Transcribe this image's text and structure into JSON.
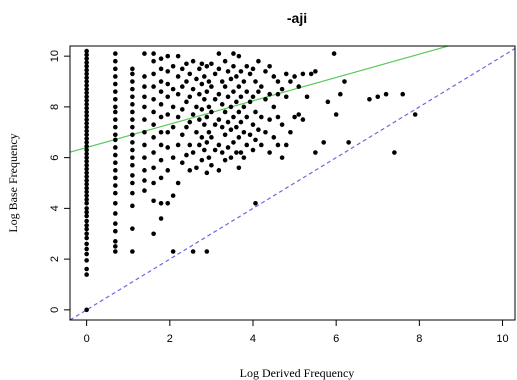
{
  "chart_data": {
    "type": "scatter",
    "title": "-aji",
    "xlabel": "Log Derived Frequency",
    "ylabel": "Log Base Frequency",
    "xlim": [
      -0.4,
      10.3
    ],
    "ylim": [
      -0.4,
      10.4
    ],
    "x_ticks": [
      0,
      2,
      4,
      6,
      8,
      10
    ],
    "y_ticks": [
      0,
      2,
      4,
      6,
      8,
      10
    ],
    "colors": {
      "points": "#000000",
      "fit_line": "#5cc95c",
      "identity_line": "#6a6ae0"
    },
    "lines": [
      {
        "name": "",
        "style": "solid",
        "color": "#5cc95c",
        "intercept": 6.4,
        "slope": 0.46
      },
      {
        "name": "",
        "style": "dashed",
        "color": "#6a6ae0",
        "intercept": 0,
        "slope": 1
      }
    ],
    "points": [
      [
        0,
        0
      ],
      [
        0,
        1.39
      ],
      [
        0,
        1.61
      ],
      [
        0,
        1.95
      ],
      [
        0,
        2.2
      ],
      [
        0,
        2.4
      ],
      [
        0,
        2.6
      ],
      [
        0,
        2.83
      ],
      [
        0,
        3.0
      ],
      [
        0,
        3.18
      ],
      [
        0,
        3.33
      ],
      [
        0,
        3.5
      ],
      [
        0,
        3.7
      ],
      [
        0,
        3.85
      ],
      [
        0,
        4.0
      ],
      [
        0,
        4.2
      ],
      [
        0,
        4.35
      ],
      [
        0,
        4.5
      ],
      [
        0,
        4.65
      ],
      [
        0,
        4.8
      ],
      [
        0,
        4.95
      ],
      [
        0,
        5.1
      ],
      [
        0,
        5.25
      ],
      [
        0,
        5.4
      ],
      [
        0,
        5.55
      ],
      [
        0,
        5.7
      ],
      [
        0,
        5.85
      ],
      [
        0,
        6.0
      ],
      [
        0,
        6.15
      ],
      [
        0,
        6.3
      ],
      [
        0,
        6.45
      ],
      [
        0,
        6.6
      ],
      [
        0,
        6.75
      ],
      [
        0,
        6.9
      ],
      [
        0,
        7.05
      ],
      [
        0,
        7.2
      ],
      [
        0,
        7.35
      ],
      [
        0,
        7.5
      ],
      [
        0,
        7.65
      ],
      [
        0,
        7.8
      ],
      [
        0,
        7.95
      ],
      [
        0,
        8.1
      ],
      [
        0,
        8.25
      ],
      [
        0,
        8.4
      ],
      [
        0,
        8.55
      ],
      [
        0,
        8.7
      ],
      [
        0,
        8.85
      ],
      [
        0,
        9.0
      ],
      [
        0,
        9.15
      ],
      [
        0,
        9.3
      ],
      [
        0,
        9.45
      ],
      [
        0,
        9.6
      ],
      [
        0,
        9.75
      ],
      [
        0,
        9.9
      ],
      [
        0,
        10.05
      ],
      [
        0,
        10.2
      ],
      [
        0.69,
        2.3
      ],
      [
        0.69,
        2.5
      ],
      [
        0.69,
        2.7
      ],
      [
        0.69,
        3.1
      ],
      [
        0.69,
        3.4
      ],
      [
        0.69,
        3.8
      ],
      [
        0.69,
        4.2
      ],
      [
        0.69,
        4.6
      ],
      [
        0.69,
        4.9
      ],
      [
        0.69,
        5.2
      ],
      [
        0.69,
        5.5
      ],
      [
        0.69,
        5.8
      ],
      [
        0.69,
        6.1
      ],
      [
        0.69,
        6.4
      ],
      [
        0.69,
        6.7
      ],
      [
        0.69,
        6.9
      ],
      [
        0.69,
        7.2
      ],
      [
        0.69,
        7.5
      ],
      [
        0.69,
        7.8
      ],
      [
        0.69,
        8.0
      ],
      [
        0.69,
        8.3
      ],
      [
        0.69,
        8.6
      ],
      [
        0.69,
        8.9
      ],
      [
        0.69,
        9.2
      ],
      [
        0.69,
        9.5
      ],
      [
        0.69,
        9.8
      ],
      [
        0.69,
        10.1
      ],
      [
        1.1,
        2.3
      ],
      [
        1.1,
        3.2
      ],
      [
        1.1,
        4.1
      ],
      [
        1.1,
        4.6
      ],
      [
        1.1,
        5.0
      ],
      [
        1.1,
        5.3
      ],
      [
        1.1,
        5.7
      ],
      [
        1.1,
        6.0
      ],
      [
        1.1,
        6.3
      ],
      [
        1.1,
        6.6
      ],
      [
        1.1,
        6.9
      ],
      [
        1.1,
        7.2
      ],
      [
        1.1,
        7.5
      ],
      [
        1.1,
        7.8
      ],
      [
        1.1,
        8.1
      ],
      [
        1.1,
        8.4
      ],
      [
        1.1,
        8.7
      ],
      [
        1.1,
        9.0
      ],
      [
        1.1,
        9.3
      ],
      [
        1.1,
        9.5
      ],
      [
        1.39,
        4.7
      ],
      [
        1.39,
        5.1
      ],
      [
        1.39,
        5.5
      ],
      [
        1.39,
        6.0
      ],
      [
        1.39,
        6.5
      ],
      [
        1.39,
        7.0
      ],
      [
        1.39,
        7.5
      ],
      [
        1.39,
        8.0
      ],
      [
        1.39,
        8.4
      ],
      [
        1.39,
        8.8
      ],
      [
        1.39,
        9.2
      ],
      [
        1.39,
        10.1
      ],
      [
        1.61,
        3.0
      ],
      [
        1.61,
        4.3
      ],
      [
        1.61,
        5.0
      ],
      [
        1.61,
        5.6
      ],
      [
        1.61,
        6.2
      ],
      [
        1.61,
        6.8
      ],
      [
        1.61,
        7.3
      ],
      [
        1.61,
        7.8
      ],
      [
        1.61,
        8.3
      ],
      [
        1.61,
        8.8
      ],
      [
        1.61,
        9.3
      ],
      [
        1.61,
        9.8
      ],
      [
        1.61,
        10.1
      ],
      [
        1.79,
        3.6
      ],
      [
        1.79,
        4.2
      ],
      [
        1.79,
        5.2
      ],
      [
        1.79,
        5.9
      ],
      [
        1.79,
        6.5
      ],
      [
        1.79,
        7.0
      ],
      [
        1.79,
        7.6
      ],
      [
        1.79,
        8.1
      ],
      [
        1.79,
        8.6
      ],
      [
        1.79,
        9.0
      ],
      [
        1.79,
        9.5
      ],
      [
        1.79,
        9.9
      ],
      [
        1.95,
        4.2
      ],
      [
        1.95,
        5.5
      ],
      [
        1.95,
        6.4
      ],
      [
        1.95,
        7.0
      ],
      [
        1.95,
        7.7
      ],
      [
        1.95,
        8.4
      ],
      [
        1.95,
        8.9
      ],
      [
        1.95,
        9.4
      ],
      [
        1.95,
        10.0
      ],
      [
        2.08,
        2.3
      ],
      [
        2.08,
        4.5
      ],
      [
        2.08,
        6.0
      ],
      [
        2.08,
        7.2
      ],
      [
        2.08,
        8.0
      ],
      [
        2.08,
        8.7
      ],
      [
        2.08,
        9.6
      ],
      [
        2.2,
        5.0
      ],
      [
        2.2,
        6.5
      ],
      [
        2.2,
        7.6
      ],
      [
        2.2,
        8.5
      ],
      [
        2.2,
        9.2
      ],
      [
        2.2,
        10.0
      ],
      [
        2.3,
        5.8
      ],
      [
        2.3,
        6.9
      ],
      [
        2.3,
        7.9
      ],
      [
        2.3,
        8.8
      ],
      [
        2.3,
        9.5
      ],
      [
        2.4,
        6.1
      ],
      [
        2.4,
        7.2
      ],
      [
        2.4,
        8.2
      ],
      [
        2.4,
        9.0
      ],
      [
        2.4,
        9.7
      ],
      [
        2.48,
        5.5
      ],
      [
        2.48,
        6.5
      ],
      [
        2.48,
        7.4
      ],
      [
        2.48,
        8.4
      ],
      [
        2.48,
        9.3
      ],
      [
        2.56,
        2.3
      ],
      [
        2.56,
        6.2
      ],
      [
        2.56,
        7.7
      ],
      [
        2.56,
        8.7
      ],
      [
        2.56,
        9.8
      ],
      [
        2.64,
        5.6
      ],
      [
        2.64,
        7.0
      ],
      [
        2.64,
        8.0
      ],
      [
        2.64,
        9.1
      ],
      [
        2.71,
        6.5
      ],
      [
        2.71,
        7.5
      ],
      [
        2.71,
        8.5
      ],
      [
        2.71,
        9.5
      ],
      [
        2.77,
        5.9
      ],
      [
        2.77,
        6.8
      ],
      [
        2.77,
        7.9
      ],
      [
        2.77,
        8.9
      ],
      [
        2.77,
        9.7
      ],
      [
        2.83,
        6.3
      ],
      [
        2.83,
        7.3
      ],
      [
        2.83,
        8.3
      ],
      [
        2.83,
        9.2
      ],
      [
        2.89,
        2.3
      ],
      [
        2.89,
        5.4
      ],
      [
        2.89,
        6.6
      ],
      [
        2.89,
        7.6
      ],
      [
        2.89,
        8.6
      ],
      [
        2.89,
        9.6
      ],
      [
        2.94,
        6.0
      ],
      [
        2.94,
        7.0
      ],
      [
        2.94,
        8.0
      ],
      [
        2.94,
        9.0
      ],
      [
        3.0,
        5.7
      ],
      [
        3.0,
        6.8
      ],
      [
        3.0,
        7.8
      ],
      [
        3.0,
        8.8
      ],
      [
        3.0,
        9.7
      ],
      [
        3.09,
        6.3
      ],
      [
        3.09,
        7.3
      ],
      [
        3.09,
        8.3
      ],
      [
        3.09,
        9.3
      ],
      [
        3.18,
        5.5
      ],
      [
        3.18,
        6.5
      ],
      [
        3.18,
        7.5
      ],
      [
        3.18,
        8.5
      ],
      [
        3.18,
        9.5
      ],
      [
        3.18,
        10.1
      ],
      [
        3.26,
        6.2
      ],
      [
        3.26,
        7.2
      ],
      [
        3.26,
        8.1
      ],
      [
        3.26,
        9.0
      ],
      [
        3.33,
        5.9
      ],
      [
        3.33,
        6.9
      ],
      [
        3.33,
        7.8
      ],
      [
        3.33,
        8.8
      ],
      [
        3.33,
        9.8
      ],
      [
        3.4,
        6.4
      ],
      [
        3.4,
        7.4
      ],
      [
        3.4,
        8.4
      ],
      [
        3.4,
        9.4
      ],
      [
        3.47,
        6.0
      ],
      [
        3.47,
        7.1
      ],
      [
        3.47,
        8.0
      ],
      [
        3.47,
        9.1
      ],
      [
        3.53,
        6.6
      ],
      [
        3.53,
        7.6
      ],
      [
        3.53,
        8.6
      ],
      [
        3.53,
        9.6
      ],
      [
        3.53,
        10.1
      ],
      [
        3.6,
        6.2
      ],
      [
        3.6,
        7.2
      ],
      [
        3.6,
        8.2
      ],
      [
        3.6,
        9.2
      ],
      [
        3.66,
        5.6
      ],
      [
        3.66,
        6.8
      ],
      [
        3.66,
        7.8
      ],
      [
        3.66,
        8.8
      ],
      [
        3.66,
        10.0
      ],
      [
        3.71,
        6.2
      ],
      [
        3.71,
        7.4
      ],
      [
        3.71,
        8.4
      ],
      [
        3.71,
        9.4
      ],
      [
        3.78,
        6.0
      ],
      [
        3.78,
        7.0
      ],
      [
        3.78,
        8.0
      ],
      [
        3.78,
        9.0
      ],
      [
        3.85,
        6.5
      ],
      [
        3.85,
        7.6
      ],
      [
        3.85,
        8.6
      ],
      [
        3.85,
        9.6
      ],
      [
        3.93,
        6.9
      ],
      [
        3.93,
        8.2
      ],
      [
        3.93,
        9.3
      ],
      [
        4.0,
        6.3
      ],
      [
        4.0,
        7.3
      ],
      [
        4.0,
        8.4
      ],
      [
        4.0,
        9.5
      ],
      [
        4.06,
        4.2
      ],
      [
        4.06,
        6.7
      ],
      [
        4.06,
        7.8
      ],
      [
        4.06,
        9.0
      ],
      [
        4.13,
        7.1
      ],
      [
        4.13,
        8.6
      ],
      [
        4.13,
        9.8
      ],
      [
        4.2,
        6.5
      ],
      [
        4.2,
        7.6
      ],
      [
        4.2,
        8.8
      ],
      [
        4.3,
        7.0
      ],
      [
        4.3,
        8.3
      ],
      [
        4.3,
        9.4
      ],
      [
        4.4,
        6.2
      ],
      [
        4.4,
        7.5
      ],
      [
        4.4,
        8.5
      ],
      [
        4.4,
        9.6
      ],
      [
        4.5,
        6.8
      ],
      [
        4.5,
        8.0
      ],
      [
        4.5,
        9.2
      ],
      [
        4.6,
        6.5
      ],
      [
        4.6,
        7.6
      ],
      [
        4.6,
        8.5
      ],
      [
        4.6,
        9.0
      ],
      [
        4.7,
        6.0
      ],
      [
        4.7,
        7.3
      ],
      [
        4.7,
        8.7
      ],
      [
        4.8,
        6.5
      ],
      [
        4.8,
        8.4
      ],
      [
        4.8,
        9.3
      ],
      [
        4.9,
        7.0
      ],
      [
        4.9,
        9.0
      ],
      [
        5.0,
        7.6
      ],
      [
        5.0,
        9.2
      ],
      [
        5.1,
        7.7
      ],
      [
        5.1,
        8.8
      ],
      [
        5.2,
        7.5
      ],
      [
        5.2,
        9.3
      ],
      [
        5.3,
        8.4
      ],
      [
        5.4,
        9.3
      ],
      [
        5.5,
        6.2
      ],
      [
        5.5,
        9.4
      ],
      [
        5.7,
        6.6
      ],
      [
        5.8,
        8.2
      ],
      [
        5.95,
        10.1
      ],
      [
        6.0,
        7.7
      ],
      [
        6.1,
        8.5
      ],
      [
        6.2,
        9.0
      ],
      [
        6.3,
        6.6
      ],
      [
        6.8,
        8.3
      ],
      [
        7.0,
        8.4
      ],
      [
        7.2,
        8.5
      ],
      [
        7.4,
        6.2
      ],
      [
        7.6,
        8.5
      ],
      [
        7.9,
        7.7
      ]
    ]
  }
}
